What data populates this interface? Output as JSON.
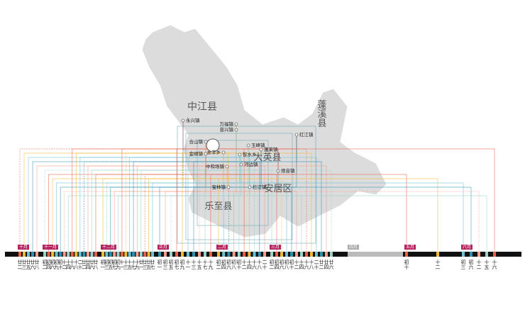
{
  "regions": [
    "中江县",
    "蓬溪县",
    "大英县",
    "安居区",
    "乐至县"
  ],
  "towns": [
    "永兴镇",
    "万福镇",
    "普兴镇",
    "红江镇",
    "合山镇",
    "玉峰镇",
    "金顺镇",
    "永丰乡",
    "智水乡",
    "蓬莱镇",
    "中和场镇",
    "河边镇",
    "观音镇",
    "宝林镇",
    "拦江镇"
  ],
  "timeline": [
    {
      "month": "十月",
      "days": [
        "廿二",
        "廿三",
        "廿五",
        "廿六",
        "廿八"
      ]
    },
    {
      "month": "十一月",
      "days": [
        "初二",
        "初四",
        "初六",
        "初九",
        "初十",
        "十二",
        "十四",
        "十六",
        "十八",
        "二十",
        "廿二",
        "廿四",
        "廿六",
        "廿八"
      ]
    },
    {
      "month": "十二月",
      "days": [
        "初一",
        "初三",
        "初五",
        "初七",
        "初九",
        "十一",
        "十三",
        "十五",
        "十七",
        "十九",
        "廿一",
        "廿三",
        "廿五",
        "廿七"
      ]
    },
    {
      "month": "正月",
      "days": [
        "初一",
        "初三",
        "初五",
        "初七",
        "初九",
        "十一",
        "十三",
        "十五",
        "十七",
        "十九"
      ]
    },
    {
      "month": "二月",
      "days": [
        "初二",
        "初四",
        "初六",
        "初八",
        "初十",
        "十二",
        "十四",
        "十六",
        "十八",
        "二十"
      ]
    },
    {
      "month": "三月",
      "days": [
        "初二",
        "初四",
        "初六",
        "初八",
        "初十",
        "十二",
        "十四",
        "十六",
        "十八",
        "二十",
        "廿二",
        "廿四",
        "廿六"
      ]
    },
    {
      "month": "四月",
      "days": []
    },
    {
      "month": "五月",
      "days": [
        "初十",
        "十二"
      ]
    },
    {
      "month": "六月",
      "days": [
        "初三",
        "初六",
        "十二",
        "十五",
        "十六"
      ]
    }
  ]
}
